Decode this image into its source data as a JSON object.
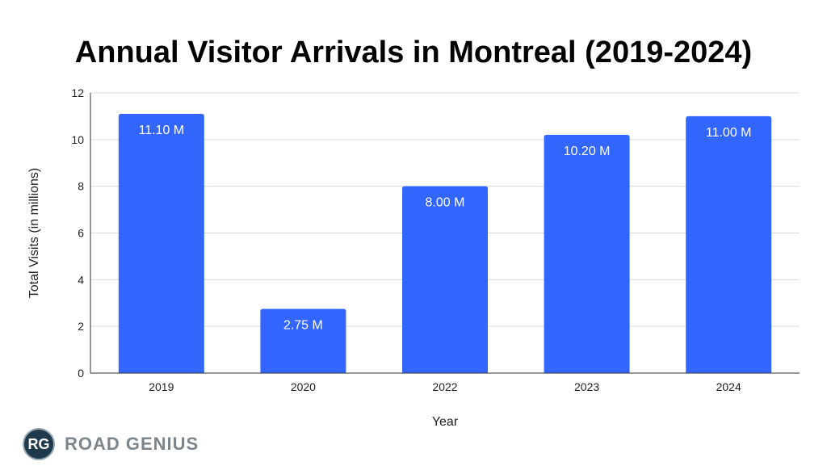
{
  "chart_data": {
    "type": "bar",
    "title": "Annual Visitor Arrivals in Montreal (2019-2024)",
    "xlabel": "Year",
    "ylabel": "Total Visits (in millions)",
    "categories": [
      "2019",
      "2020",
      "2022",
      "2023",
      "2024"
    ],
    "values": [
      11.1,
      2.75,
      8.0,
      10.2,
      11.0
    ],
    "data_labels": [
      "11.10 M",
      "2.75 M",
      "8.00 M",
      "10.20 M",
      "11.00 M"
    ],
    "ylim": [
      0,
      12
    ],
    "yticks": [
      0,
      2,
      4,
      6,
      8,
      10,
      12
    ],
    "grid": true,
    "legend": "none",
    "bar_color": "#3366ff"
  },
  "logo": {
    "initials": "RG",
    "name": "ROAD GENIUS"
  }
}
